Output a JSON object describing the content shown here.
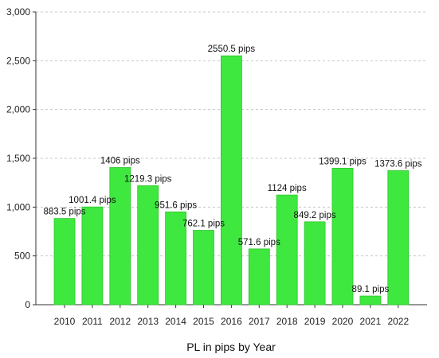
{
  "chart_data": {
    "type": "bar",
    "title": "",
    "xlabel": "PL in pips by Year",
    "ylabel": "",
    "categories": [
      "2010",
      "2011",
      "2012",
      "2013",
      "2014",
      "2015",
      "2016",
      "2017",
      "2018",
      "2019",
      "2020",
      "2021",
      "2022"
    ],
    "values": [
      883.5,
      1001.4,
      1406,
      1219.3,
      951.6,
      762.1,
      2550.5,
      571.6,
      1124,
      849.2,
      1399.1,
      89.1,
      1373.6
    ],
    "data_labels": [
      "883.5 pips",
      "1001.4 pips",
      "1406 pips",
      "1219.3 pips",
      "951.6 pips",
      "762.1 pips",
      "2550.5 pips",
      "571.6 pips",
      "1124 pips",
      "849.2 pips",
      "1399.1 pips",
      "89.1 pips",
      "1373.6 pips"
    ],
    "y_ticks": [
      "0",
      "500",
      "1,000",
      "1,500",
      "2,000",
      "2,500",
      "3,000"
    ],
    "ylim": [
      0,
      3000
    ],
    "grid": true,
    "legend": "none",
    "colors": {
      "bar": "#3fe83f",
      "bar_edge": "#2fc42f",
      "grid": "#c8c8c8",
      "axis": "#333333"
    }
  }
}
